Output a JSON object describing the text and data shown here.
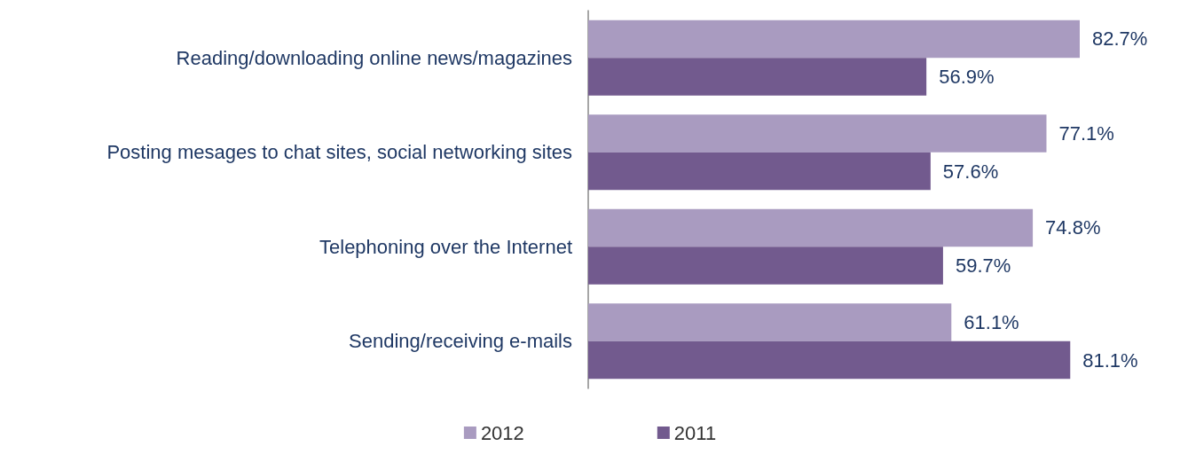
{
  "chart_data": {
    "type": "bar",
    "orientation": "horizontal",
    "categories": [
      "Reading/downloading online news/magazines",
      "Posting mesages to chat sites, social networking sites",
      "Telephoning over the Internet",
      "Sending/receiving e-mails"
    ],
    "series": [
      {
        "name": "2012",
        "color": "#a99bc0",
        "values": [
          82.7,
          77.1,
          74.8,
          61.1
        ],
        "value_labels": [
          "82.7%",
          "77.1%",
          "74.8%",
          "61.1%"
        ]
      },
      {
        "name": "2011",
        "color": "#725a8e",
        "values": [
          56.9,
          57.6,
          59.7,
          81.1
        ],
        "value_labels": [
          "56.9%",
          "57.6%",
          "59.7%",
          "81.1%"
        ]
      }
    ],
    "legend": "bottom"
  }
}
